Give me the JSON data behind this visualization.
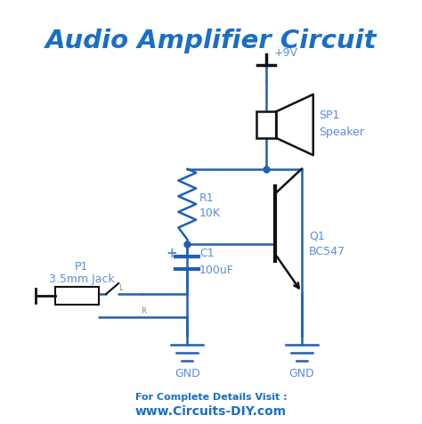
{
  "title": "Audio Amplifier Circuit",
  "title_color": "#1a6fc4",
  "title_fontsize": 21,
  "circuit_color": "#2060b0",
  "label_color": "#5b8dd9",
  "footer_text1": "For Complete Details Visit :",
  "footer_text2": "www.Circuits-DIY.com",
  "footer_color": "#1a6fc4",
  "bg_color": "#ffffff",
  "component_color": "#111111",
  "gnd_label": "GND",
  "vcc_label": "+9V",
  "r1_label1": "R1",
  "r1_label2": "10K",
  "c1_label1": "C1",
  "c1_label2": "100uF",
  "q1_label1": "Q1",
  "q1_label2": "BC547",
  "sp1_label1": "SP1",
  "sp1_label2": "Speaker",
  "p1_label1": "P1",
  "p1_label2": "3.5mm Jack",
  "plus_label": "+"
}
